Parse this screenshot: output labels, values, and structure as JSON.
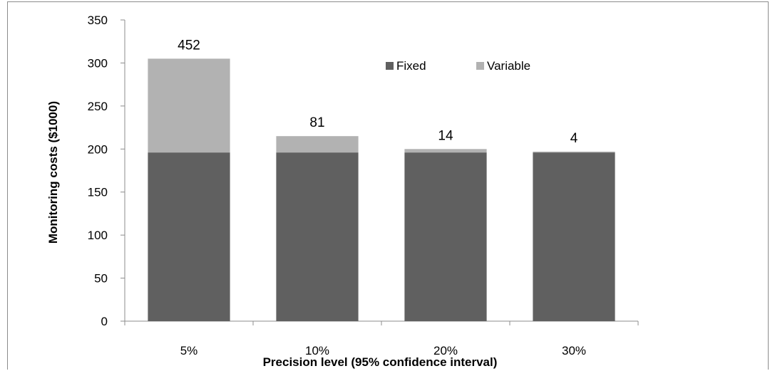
{
  "chart_data": {
    "type": "bar",
    "stacked": true,
    "categories": [
      "5%",
      "10%",
      "20%",
      "30%"
    ],
    "series": [
      {
        "name": "Fixed",
        "values": [
          196,
          196,
          196,
          196
        ],
        "color": "#606060"
      },
      {
        "name": "Variable",
        "values": [
          109,
          19,
          4,
          1
        ],
        "color": "#b2b2b2"
      }
    ],
    "data_labels": [
      "452",
      "81",
      "14",
      "4"
    ],
    "title": "",
    "xlabel": "Precision level (95% confidence  interval)",
    "ylabel": "Monitoring costs ($1000)",
    "ylim": [
      0,
      350
    ],
    "yticks": [
      0,
      50,
      100,
      150,
      200,
      250,
      300,
      350
    ],
    "grid": false,
    "legend_position": "top-right"
  }
}
